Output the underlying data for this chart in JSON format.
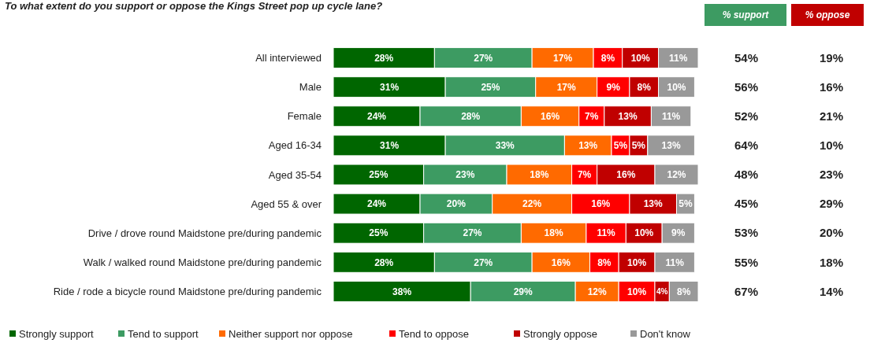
{
  "chart_data": {
    "type": "bar",
    "orientation": "horizontal",
    "stacked": true,
    "legend": "bottom",
    "title": "To what extent do you support or oppose the Kings Street pop up cycle lane?",
    "categories": [
      "All interviewed",
      "Male",
      "Female",
      "Aged 16-34",
      "Aged 35-54",
      "Aged 55 & over",
      "Drive / drove round Maidstone pre/during pandemic",
      "Walk / walked round Maidstone pre/during pandemic",
      "Ride / rode a bicycle round Maidstone pre/during pandemic"
    ],
    "series": [
      {
        "name": "Strongly support",
        "color": "#006600",
        "values": [
          28,
          31,
          24,
          31,
          25,
          24,
          25,
          28,
          38
        ],
        "value_labels": [
          "28%",
          "31%",
          "24%",
          "31%",
          "25%",
          "24%",
          "25%",
          "28%",
          "38%"
        ]
      },
      {
        "name": "Tend to support",
        "color": "#3d9b62",
        "values": [
          27,
          25,
          28,
          33,
          23,
          20,
          27,
          27,
          29
        ],
        "value_labels": [
          "27%",
          "25%",
          "28%",
          "33%",
          "23%",
          "20%",
          "27%",
          "27%",
          "29%"
        ]
      },
      {
        "name": "Neither support nor oppose",
        "color": "#ff6a00",
        "values": [
          17,
          17,
          16,
          13,
          18,
          22,
          18,
          16,
          12
        ],
        "value_labels": [
          "17%",
          "17%",
          "16%",
          "13%",
          "18%",
          "22%",
          "18%",
          "16%",
          "12%"
        ]
      },
      {
        "name": "Tend to oppose",
        "color": "#ff0000",
        "values": [
          8,
          9,
          7,
          5,
          7,
          16,
          11,
          8,
          10
        ],
        "value_labels": [
          "8%",
          "9%",
          "7%",
          "5%",
          "7%",
          "16%",
          "11%",
          "8%",
          "10%"
        ]
      },
      {
        "name": "Strongly oppose",
        "color": "#c00000",
        "values": [
          10,
          8,
          13,
          5,
          16,
          13,
          10,
          10,
          4
        ],
        "value_labels": [
          "10%",
          "8%",
          "13%",
          "5%",
          "16%",
          "13%",
          "10%",
          "10%",
          "4%"
        ]
      },
      {
        "name": "Don't know",
        "color": "#999999",
        "values": [
          11,
          10,
          11,
          13,
          12,
          5,
          9,
          11,
          8
        ],
        "value_labels": [
          "11%",
          "10%",
          "11%",
          "13%",
          "12%",
          "5%",
          "9%",
          "11%",
          "8%"
        ]
      }
    ],
    "annotations": [
      "% support",
      "% oppose",
      "54%",
      "19%",
      "56%",
      "16%",
      "52%",
      "21%",
      "64%",
      "10%",
      "48%",
      "23%",
      "45%",
      "29%",
      "53%",
      "20%",
      "55%",
      "18%",
      "67%",
      "14%"
    ]
  }
}
